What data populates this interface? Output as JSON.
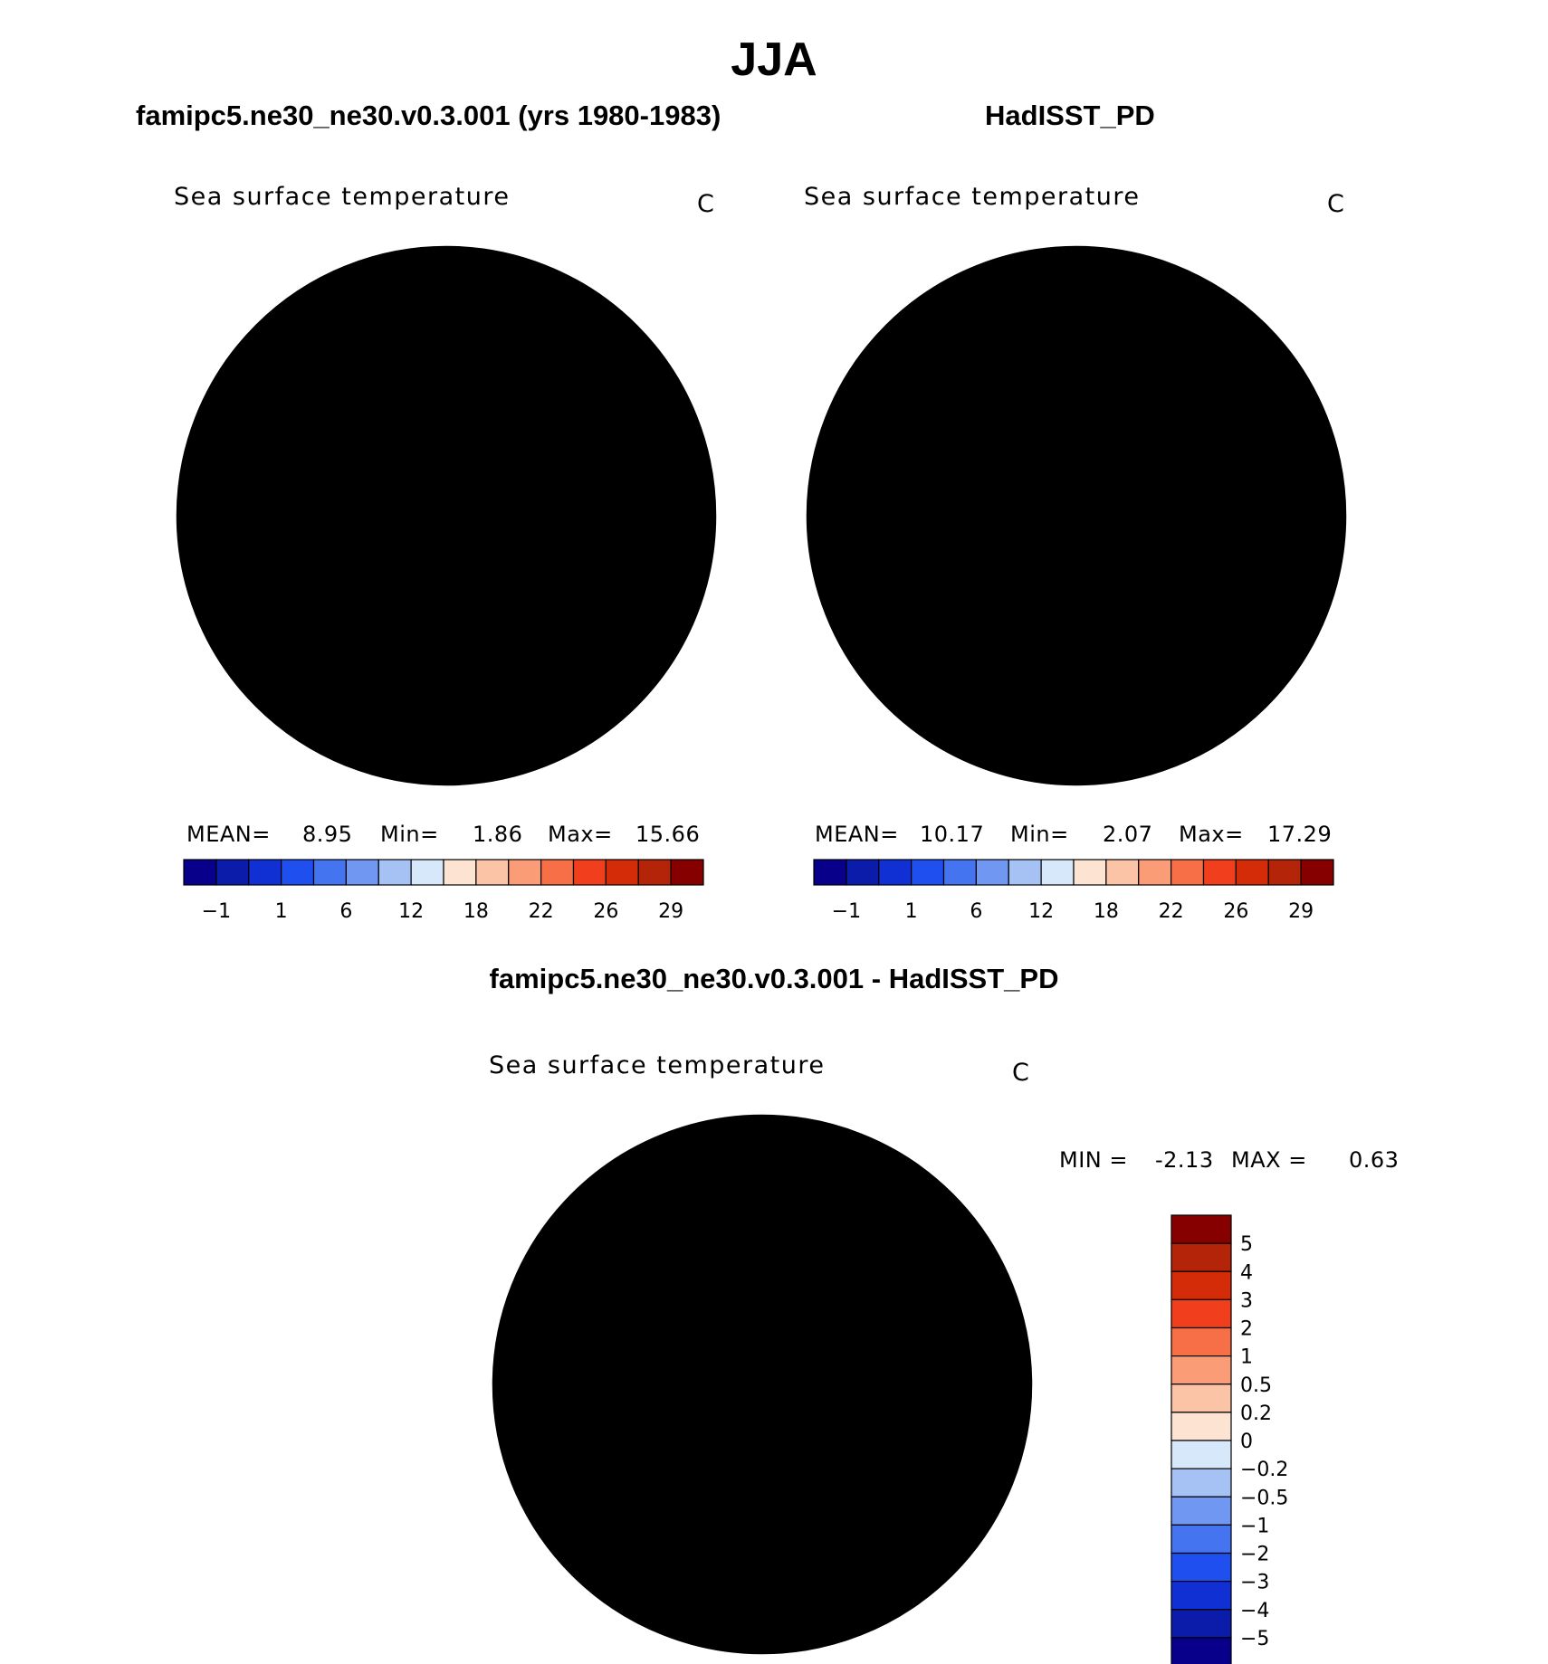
{
  "page": {
    "season": "JJA"
  },
  "colors": {
    "sst_palette": [
      "#08008a",
      "#0b1cab",
      "#1030d4",
      "#1f4fee",
      "#4474f0",
      "#7097f2",
      "#a6c2f5",
      "#d8e8fb",
      "#fde4d2",
      "#fcc4a6",
      "#fa9d77",
      "#f66f47",
      "#f13f1d",
      "#d42b08",
      "#b32408",
      "#870000"
    ],
    "diff_palette": [
      "#08008a",
      "#0b1cab",
      "#1030d4",
      "#1f4fee",
      "#4474f0",
      "#7097f2",
      "#a6c2f5",
      "#d8e8fb",
      "#fde4d2",
      "#fcc4a6",
      "#fa9d77",
      "#f66f47",
      "#f13f1d",
      "#d42b08",
      "#b32408",
      "#870000"
    ]
  },
  "chart_data": [
    {
      "type": "heatmap",
      "title": "famipc5.ne30_ne30.v0.3.001 (yrs 1980-1983)",
      "variable": "Sea surface temperature",
      "units": "C",
      "projection": "north-polar-stereographic",
      "stats": {
        "mean_label": "MEAN=",
        "mean": "8.95",
        "min_label": "Min=",
        "min": "1.86",
        "max_label": "Max=",
        "max": "15.66"
      },
      "colorbar_levels": [
        "-1",
        "1",
        "6",
        "12",
        "18",
        "22",
        "26",
        "29"
      ]
    },
    {
      "type": "heatmap",
      "title": "HadISST_PD",
      "variable": "Sea surface temperature",
      "units": "C",
      "projection": "north-polar-stereographic",
      "stats": {
        "mean_label": "MEAN=",
        "mean": "10.17",
        "min_label": "Min=",
        "min": "2.07",
        "max_label": "Max=",
        "max": "17.29"
      },
      "colorbar_levels": [
        "-1",
        "1",
        "6",
        "12",
        "18",
        "22",
        "26",
        "29"
      ]
    },
    {
      "type": "heatmap",
      "title": "famipc5.ne30_ne30.v0.3.001 - HadISST_PD",
      "variable": "Sea surface temperature",
      "units": "C",
      "projection": "north-polar-stereographic",
      "stats": {
        "min_label": "MIN =",
        "min": "-2.13",
        "max_label": "MAX =",
        "max": "0.63"
      },
      "colorbar_levels": [
        "5",
        "4",
        "3",
        "2",
        "1",
        "0.5",
        "0.2",
        "0",
        "-0.2",
        "-0.5",
        "-1",
        "-2",
        "-3",
        "-4",
        "-5"
      ]
    }
  ]
}
